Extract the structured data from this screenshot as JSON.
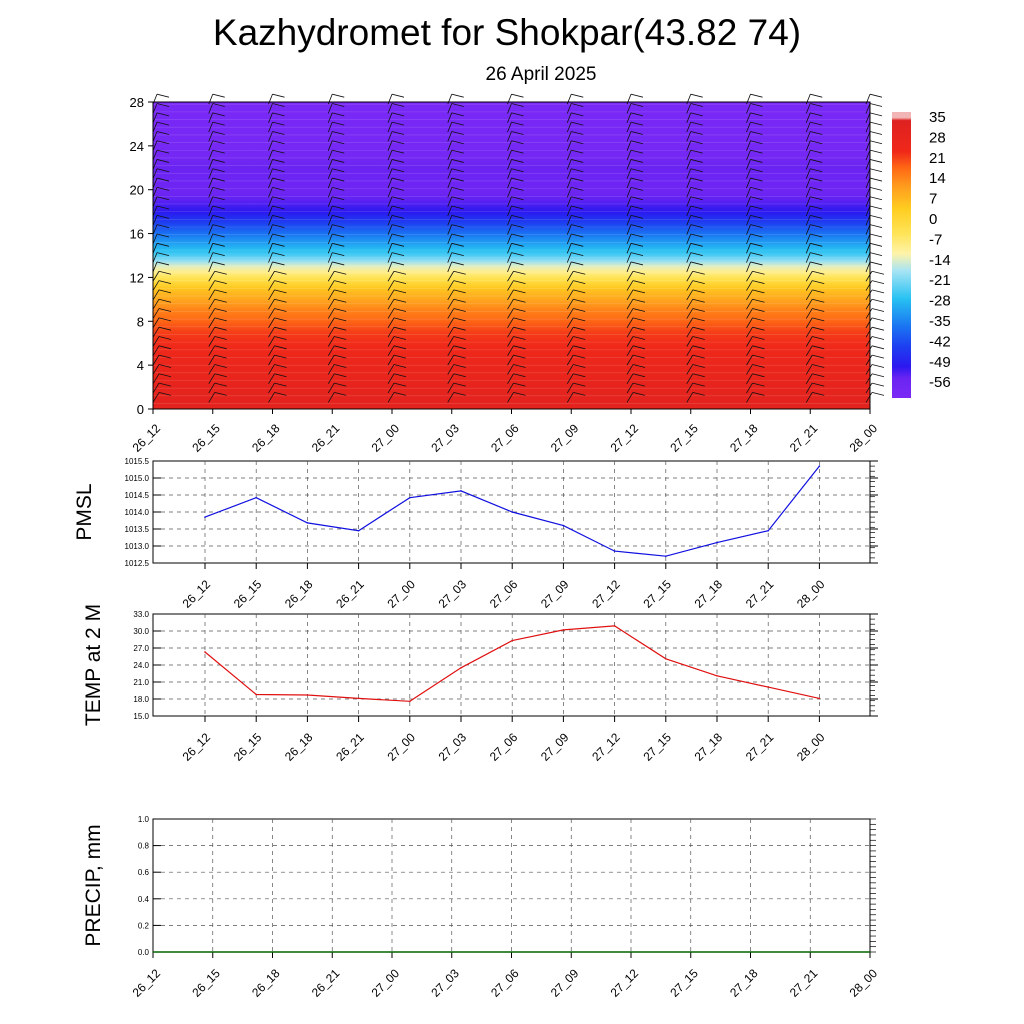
{
  "title": "Kazhydromet for Shokpar(43.82 74)",
  "subtitle": "26 April 2025",
  "time_labels": [
    "26_12",
    "26_15",
    "26_18",
    "26_21",
    "27_00",
    "27_03",
    "27_06",
    "27_09",
    "27_12",
    "27_15",
    "27_18",
    "27_21",
    "28_00"
  ],
  "chart_data": [
    {
      "type": "heatmap",
      "name": "temperature-cross-section",
      "x_ticks": [
        "26_12",
        "26_15",
        "26_18",
        "26_21",
        "27_00",
        "27_03",
        "27_06",
        "27_09",
        "27_12",
        "27_15",
        "27_18",
        "27_21",
        "28_00"
      ],
      "y_ticks": [
        0,
        4,
        8,
        12,
        16,
        20,
        24,
        28
      ],
      "ylim": [
        0,
        28
      ],
      "colorbar_labels": [
        "35",
        "28",
        "21",
        "14",
        "7",
        "0",
        "-7",
        "-14",
        "-21",
        "-28",
        "-35",
        "-42",
        "-49",
        "-56"
      ],
      "value_by_level": [
        {
          "level": 0,
          "value": 32
        },
        {
          "level": 2,
          "value": 30
        },
        {
          "level": 4,
          "value": 27
        },
        {
          "level": 7,
          "value": 22
        },
        {
          "level": 9,
          "value": 15
        },
        {
          "level": 11,
          "value": 5
        },
        {
          "level": 12,
          "value": -5
        },
        {
          "level": 13,
          "value": -14
        },
        {
          "level": 14,
          "value": -25
        },
        {
          "level": 16,
          "value": -38
        },
        {
          "level": 18,
          "value": -52
        },
        {
          "level": 20,
          "value": -58
        },
        {
          "level": 22,
          "value": -56
        },
        {
          "level": 23,
          "value": -60
        },
        {
          "level": 28,
          "value": -62
        }
      ],
      "wind_barbs": true,
      "colors": [
        "#7a29f5",
        "#2c18f0",
        "#1a72f2",
        "#27c1f2",
        "#bfe9f5",
        "#fffbb8",
        "#ffd928",
        "#ffae24",
        "#ff6a14",
        "#f0281a",
        "#dc2020"
      ]
    },
    {
      "type": "line",
      "name": "PMSL",
      "ylabel": "PMSL",
      "categories": [
        "26_12",
        "26_15",
        "26_18",
        "26_21",
        "27_00",
        "27_03",
        "27_06",
        "27_09",
        "27_12",
        "27_15",
        "27_18",
        "27_21",
        "28_00"
      ],
      "values": [
        1013.85,
        1014.42,
        1013.68,
        1013.45,
        1014.42,
        1014.62,
        1014.0,
        1013.6,
        1012.85,
        1012.7,
        1013.1,
        1013.45,
        1015.35
      ],
      "ylim": [
        1012.5,
        1015.5
      ],
      "y_ticks": [
        "1012.5",
        "1013.0",
        "1013.5",
        "1014.0",
        "1014.5",
        "1015.0",
        "1015.5"
      ],
      "color": "#1010e0",
      "grid": true
    },
    {
      "type": "line",
      "name": "TEMP at 2 M",
      "ylabel": "TEMP at 2 M",
      "categories": [
        "26_12",
        "26_15",
        "26_18",
        "26_21",
        "27_00",
        "27_03",
        "27_06",
        "27_09",
        "27_12",
        "27_15",
        "27_18",
        "27_21",
        "28_00"
      ],
      "values": [
        26.3,
        18.8,
        18.7,
        18.1,
        17.6,
        23.5,
        28.3,
        30.2,
        30.9,
        25.1,
        22.1,
        20.1,
        18.1
      ],
      "ylim": [
        15.0,
        33.0
      ],
      "y_ticks": [
        "15.0",
        "18.0",
        "21.0",
        "24.0",
        "27.0",
        "30.0",
        "33.0"
      ],
      "color": "#e01010",
      "grid": true
    },
    {
      "type": "line",
      "name": "PRECIP, mm",
      "ylabel": "PRECIP, mm",
      "categories": [
        "26_12",
        "26_15",
        "26_18",
        "26_21",
        "27_00",
        "27_03",
        "27_06",
        "27_09",
        "27_12",
        "27_15",
        "27_18",
        "27_21",
        "28_00"
      ],
      "values": [
        0,
        0,
        0,
        0,
        0,
        0,
        0,
        0,
        0,
        0,
        0,
        0,
        0
      ],
      "ylim": [
        0.0,
        1.0
      ],
      "y_ticks": [
        "0.0",
        "0.2",
        "0.4",
        "0.6",
        "0.8",
        "1.0"
      ],
      "color": "#006400",
      "grid": true
    }
  ]
}
